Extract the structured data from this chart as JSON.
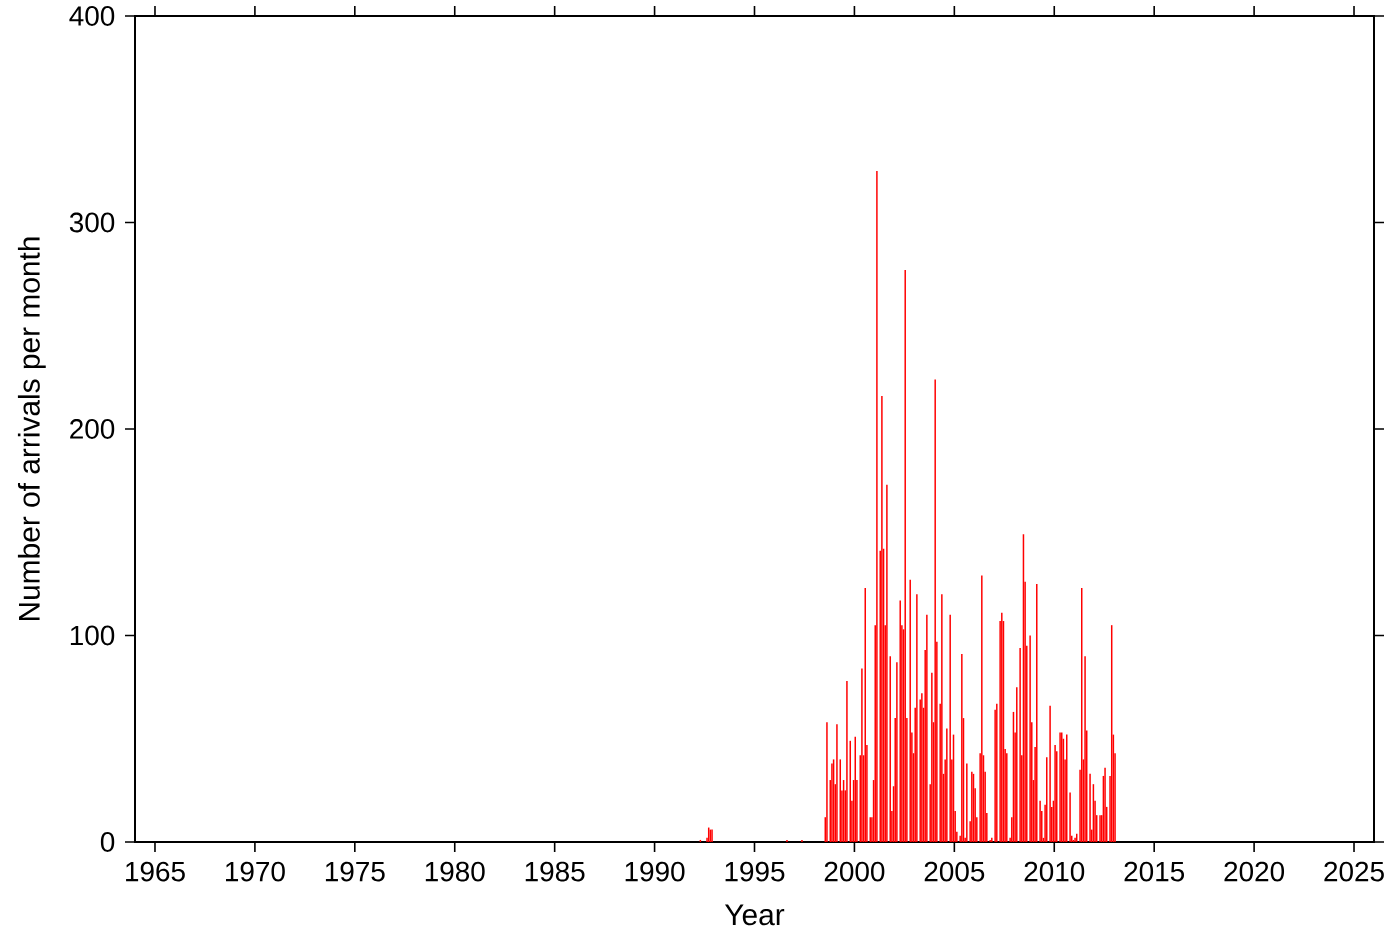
{
  "chart_data": {
    "type": "bar",
    "xlabel": "Year",
    "ylabel": "Number of arrivals per month",
    "color": "#ff0000",
    "xlim": [
      "1964",
      "2026"
    ],
    "ylim": [
      0,
      400
    ],
    "xticks": [
      "1965",
      "1970",
      "1975",
      "1980",
      "1985",
      "1990",
      "1995",
      "2000",
      "2005",
      "2010",
      "2015",
      "2020",
      "2025"
    ],
    "yticks": [
      0,
      100,
      200,
      300,
      400
    ],
    "x": [
      "1992-04",
      "1992-08",
      "1992-09",
      "1992-10",
      "1992-11",
      "1996-08",
      "1997-05",
      "1998-07",
      "1998-08",
      "1998-10",
      "1998-11",
      "1998-12",
      "1999-01",
      "1999-02",
      "1999-04",
      "1999-05",
      "1999-06",
      "1999-07",
      "1999-08",
      "1999-10",
      "1999-11",
      "1999-12",
      "2000-01",
      "2000-02",
      "2000-04",
      "2000-05",
      "2000-06",
      "2000-07",
      "2000-08",
      "2000-10",
      "2000-11",
      "2000-12",
      "2001-01",
      "2001-02",
      "2001-04",
      "2001-05",
      "2001-06",
      "2001-07",
      "2001-08",
      "2001-10",
      "2001-11",
      "2001-12",
      "2002-01",
      "2002-02",
      "2002-04",
      "2002-05",
      "2002-06",
      "2002-07",
      "2002-08",
      "2002-10",
      "2002-11",
      "2002-12",
      "2003-01",
      "2003-02",
      "2003-04",
      "2003-05",
      "2003-06",
      "2003-07",
      "2003-08",
      "2003-10",
      "2003-11",
      "2003-12",
      "2004-01",
      "2004-02",
      "2004-04",
      "2004-05",
      "2004-06",
      "2004-07",
      "2004-08",
      "2004-10",
      "2004-11",
      "2004-12",
      "2005-01",
      "2005-02",
      "2005-04",
      "2005-05",
      "2005-06",
      "2005-07",
      "2005-08",
      "2005-10",
      "2005-11",
      "2005-12",
      "2006-01",
      "2006-02",
      "2006-04",
      "2006-05",
      "2006-06",
      "2006-07",
      "2006-08",
      "2006-10",
      "2006-11",
      "2006-12",
      "2007-01",
      "2007-02",
      "2007-04",
      "2007-05",
      "2007-06",
      "2007-07",
      "2007-08",
      "2007-10",
      "2007-11",
      "2007-12",
      "2008-01",
      "2008-02",
      "2008-04",
      "2008-05",
      "2008-06",
      "2008-07",
      "2008-08",
      "2008-10",
      "2008-11",
      "2008-12",
      "2009-01",
      "2009-02",
      "2009-04",
      "2009-05",
      "2009-06",
      "2009-07",
      "2009-08",
      "2009-10",
      "2009-11",
      "2009-12",
      "2010-01",
      "2010-02",
      "2010-04",
      "2010-05",
      "2010-06",
      "2010-07",
      "2010-08",
      "2010-10",
      "2010-11",
      "2010-12",
      "2011-01",
      "2011-02",
      "2011-04",
      "2011-05",
      "2011-06",
      "2011-07",
      "2011-08",
      "2011-10",
      "2011-11",
      "2011-12",
      "2012-01",
      "2012-02",
      "2012-04",
      "2012-05",
      "2012-06",
      "2012-07",
      "2012-08",
      "2012-10",
      "2012-11",
      "2012-12",
      "2013-01"
    ],
    "values": [
      1,
      2,
      7,
      6,
      6,
      1,
      1,
      12,
      58,
      30,
      38,
      40,
      28,
      57,
      40,
      25,
      30,
      25,
      78,
      49,
      20,
      30,
      51,
      30,
      42,
      84,
      42,
      123,
      47,
      12,
      12,
      30,
      105,
      325,
      141,
      216,
      142,
      105,
      173,
      90,
      15,
      27,
      60,
      87,
      117,
      105,
      103,
      277,
      60,
      127,
      53,
      43,
      65,
      120,
      69,
      72,
      65,
      93,
      110,
      28,
      82,
      58,
      224,
      97,
      67,
      120,
      33,
      40,
      55,
      110,
      40,
      52,
      15,
      5,
      3,
      91,
      60,
      2,
      38,
      10,
      34,
      33,
      26,
      12,
      43,
      129,
      42,
      34,
      14,
      1,
      2,
      0,
      64,
      67,
      107,
      111,
      107,
      45,
      43,
      2,
      12,
      63,
      53,
      75,
      94,
      42,
      149,
      126,
      95,
      100,
      58,
      30,
      46,
      125,
      20,
      15,
      2,
      18,
      41,
      66,
      17,
      20,
      47,
      44,
      53,
      53,
      50,
      40,
      52,
      24,
      3,
      1,
      2,
      4,
      35,
      123,
      40,
      90,
      54,
      33,
      6,
      28,
      20,
      13,
      13,
      13,
      32,
      36,
      17,
      32,
      105,
      52,
      43
    ]
  }
}
